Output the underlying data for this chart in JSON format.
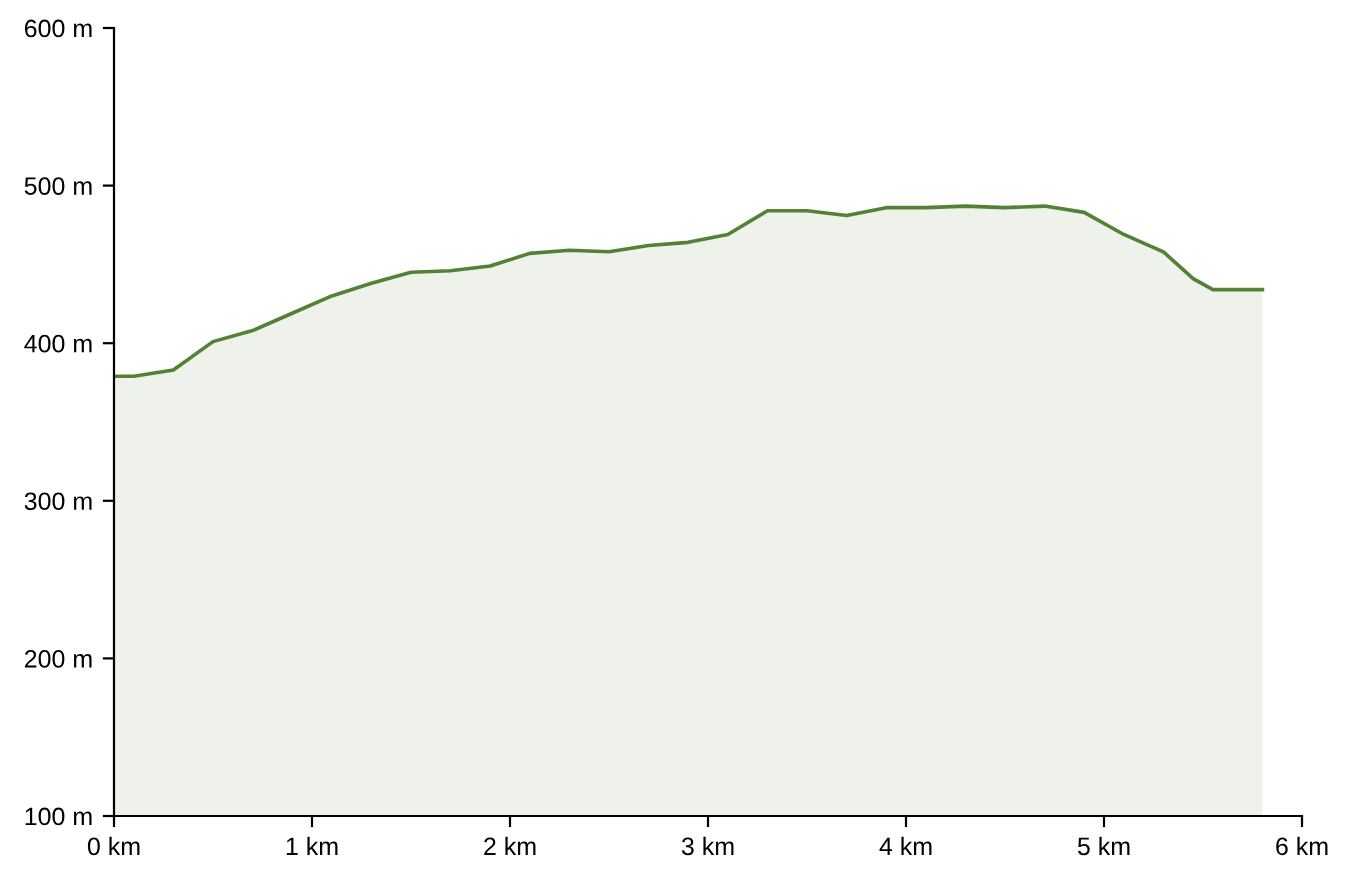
{
  "chart_data": {
    "type": "area",
    "x": [
      0,
      0.1,
      0.3,
      0.5,
      0.7,
      0.9,
      1.1,
      1.3,
      1.5,
      1.7,
      1.9,
      2.1,
      2.3,
      2.5,
      2.7,
      2.9,
      3.1,
      3.3,
      3.5,
      3.7,
      3.9,
      4.1,
      4.3,
      4.5,
      4.7,
      4.9,
      5.1,
      5.3,
      5.45,
      5.55,
      5.8
    ],
    "series": [
      {
        "color": "#538135",
        "values": [
          379,
          379,
          383,
          401,
          408,
          419,
          430,
          438,
          445,
          446,
          449,
          457,
          459,
          458,
          462,
          464,
          469,
          484,
          484,
          481,
          486,
          486,
          487,
          486,
          487,
          483,
          469,
          458,
          441,
          434,
          434
        ]
      }
    ],
    "xlim": [
      0,
      6
    ],
    "xticks": [
      {
        "value": 0,
        "label": "0 km"
      },
      {
        "value": 1,
        "label": "1 km"
      },
      {
        "value": 2,
        "label": "2 km"
      },
      {
        "value": 3,
        "label": "3 km"
      },
      {
        "value": 4,
        "label": "4 km"
      },
      {
        "value": 5,
        "label": "5 km"
      },
      {
        "value": 6,
        "label": "6 km"
      }
    ],
    "ylim": [
      100,
      600
    ],
    "yticks": [
      {
        "value": 100,
        "label": "100 m"
      },
      {
        "value": 200,
        "label": "200 m"
      },
      {
        "value": 300,
        "label": "300 m"
      },
      {
        "value": 400,
        "label": "400 m"
      },
      {
        "value": 500,
        "label": "500 m"
      },
      {
        "value": 600,
        "label": "600 m"
      }
    ],
    "grid": false,
    "legend": false
  }
}
